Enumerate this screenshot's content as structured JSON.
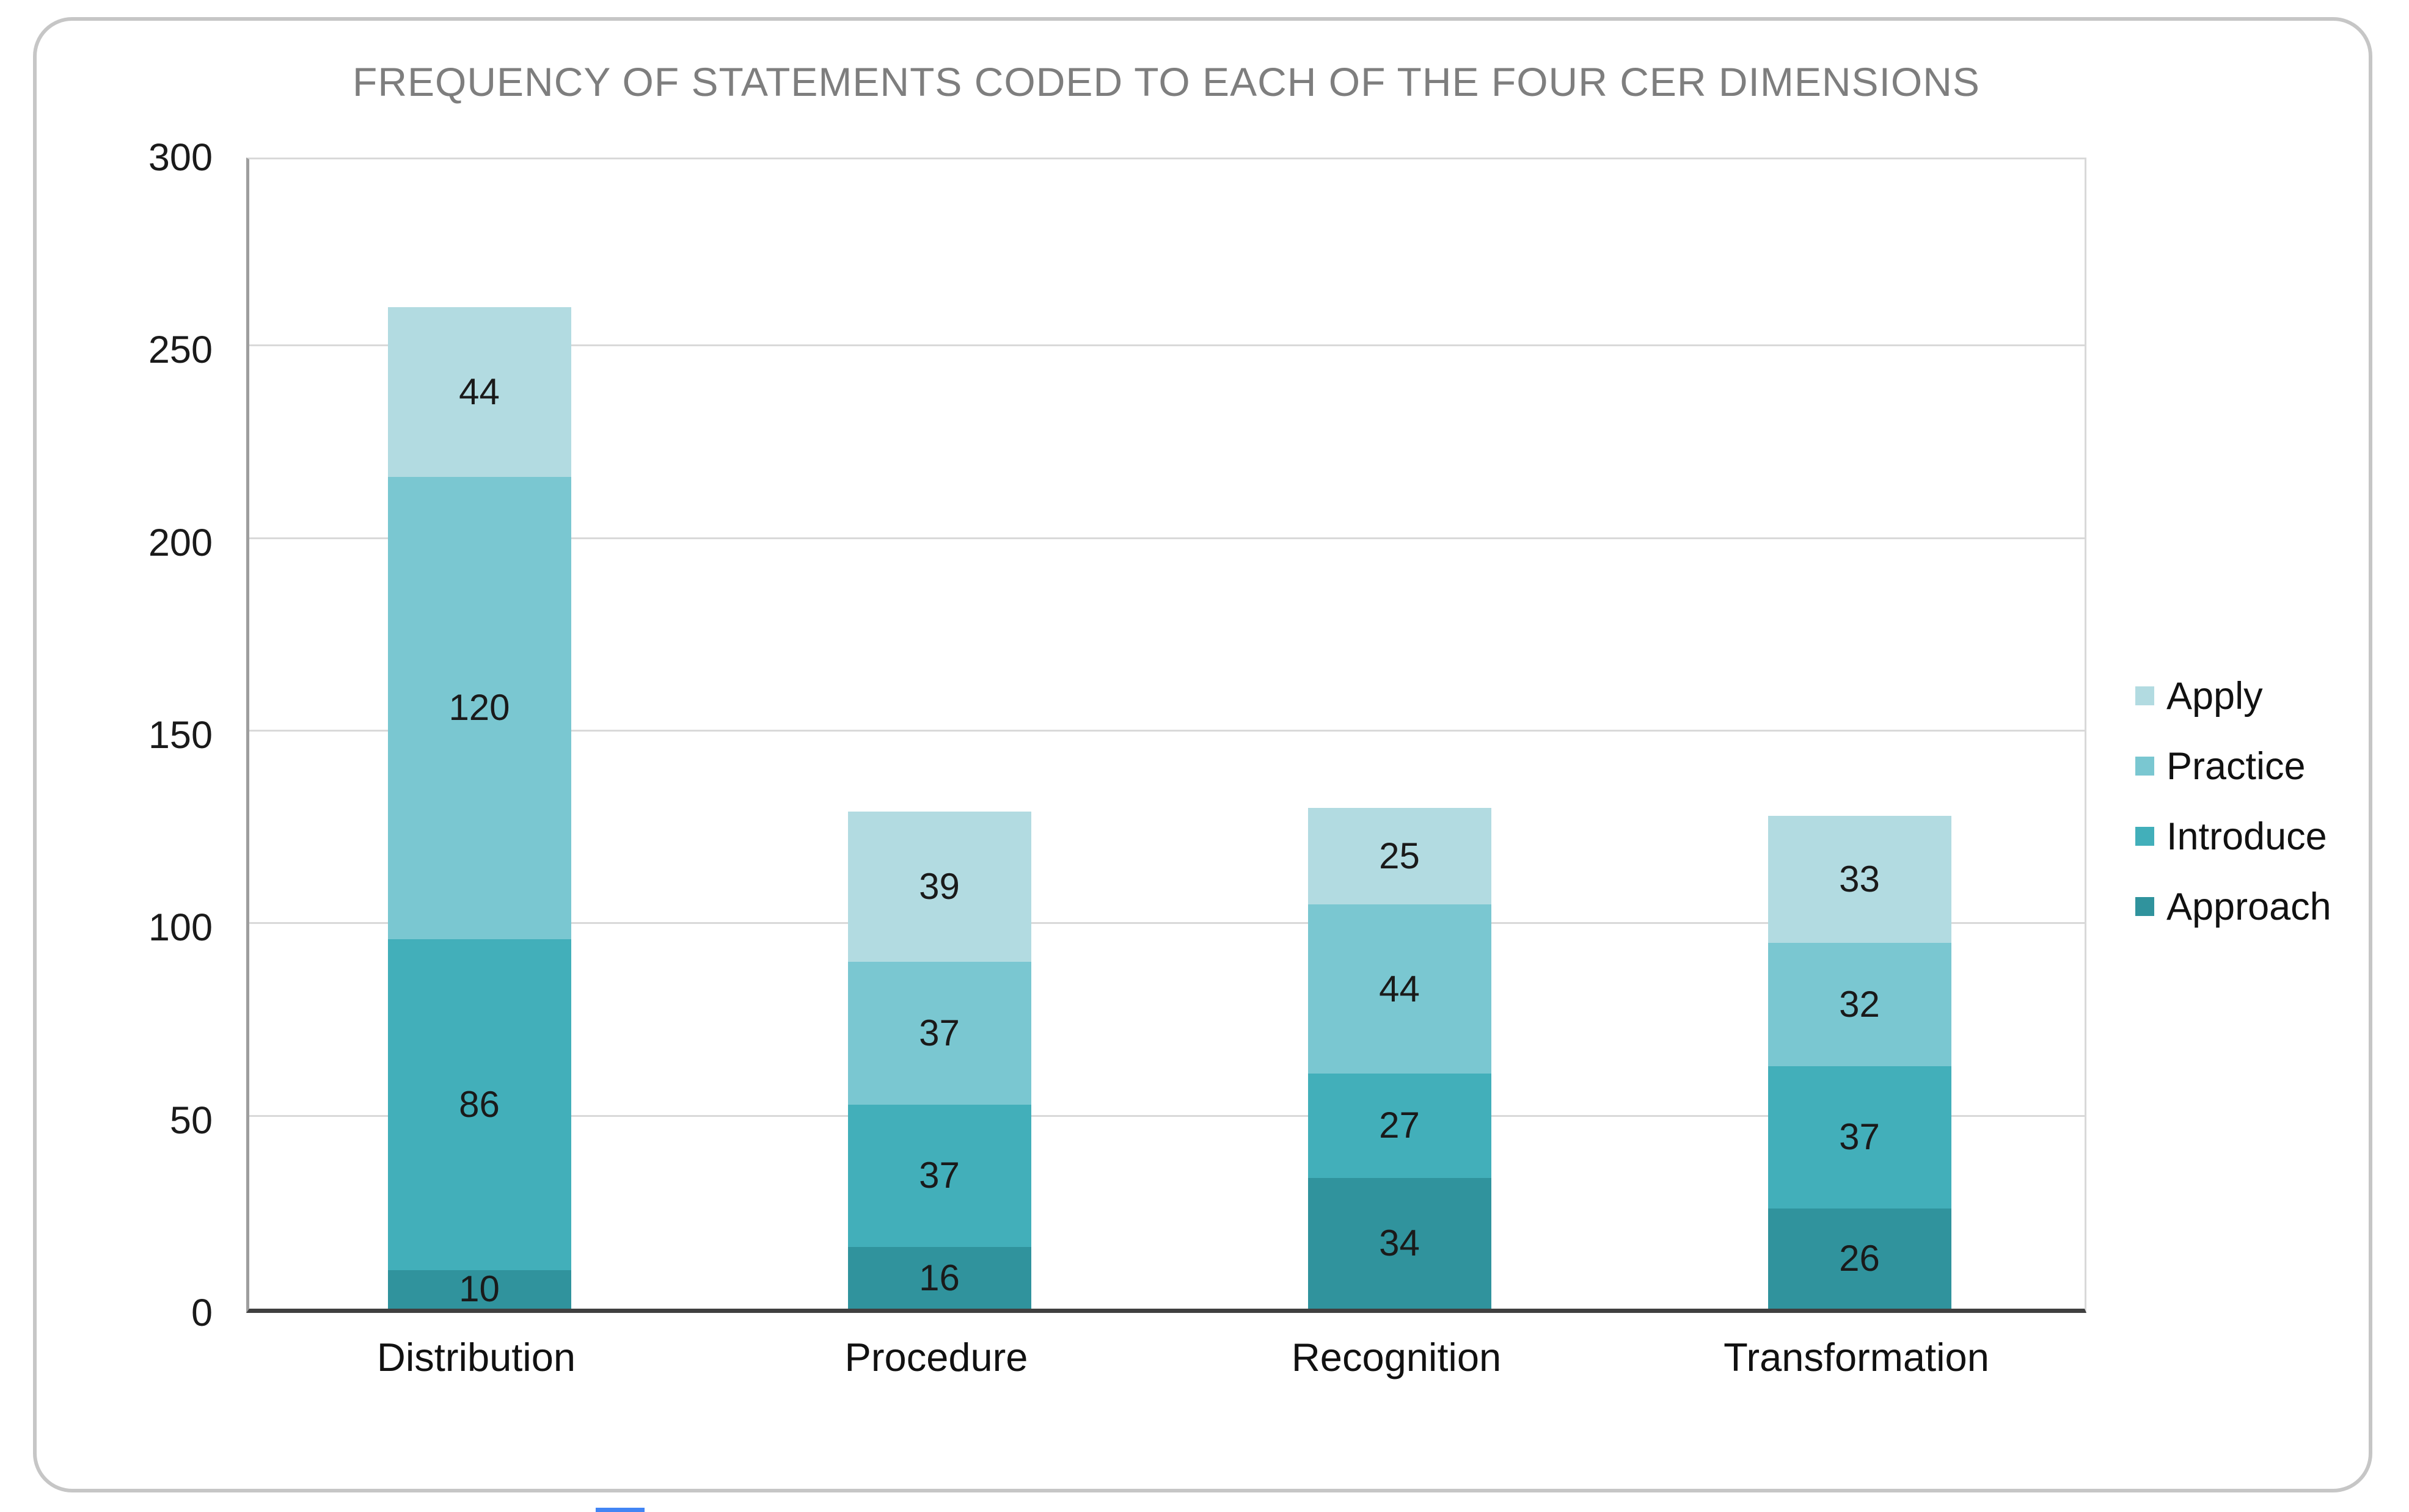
{
  "frame": {
    "background_color": "#ffffff",
    "border_color": "#c6c6c6"
  },
  "chart_data": {
    "type": "bar",
    "stacked": true,
    "title": "FREQUENCY OF STATEMENTS CODED TO EACH OF THE FOUR CER DIMENSIONS",
    "title_color": "#7e7e7e",
    "categories": [
      "Distribution",
      "Procedure",
      "Recognition",
      "Transformation"
    ],
    "series": [
      {
        "name": "Approach",
        "color": "#30939d",
        "values": [
          10,
          16,
          34,
          26
        ]
      },
      {
        "name": "Introduce",
        "color": "#42afba",
        "values": [
          86,
          37,
          27,
          37
        ]
      },
      {
        "name": "Practice",
        "color": "#7ac7d1",
        "values": [
          120,
          37,
          44,
          32
        ]
      },
      {
        "name": "Apply",
        "color": "#b2dbe1",
        "values": [
          44,
          39,
          25,
          33
        ]
      }
    ],
    "totals": [
      260,
      129,
      130,
      128
    ],
    "ylim": [
      0,
      300
    ],
    "yticks": [
      0,
      50,
      100,
      150,
      200,
      250,
      300
    ],
    "grid": true,
    "gridline_color": "#d9d9d9",
    "axis_line_color": "#9e9e9e",
    "baseline_color": "#404040",
    "value_label_color": "#1a1a1a",
    "legend": {
      "position": "right",
      "order": [
        "Apply",
        "Practice",
        "Introduce",
        "Approach"
      ]
    },
    "xlabel": "",
    "ylabel": ""
  }
}
